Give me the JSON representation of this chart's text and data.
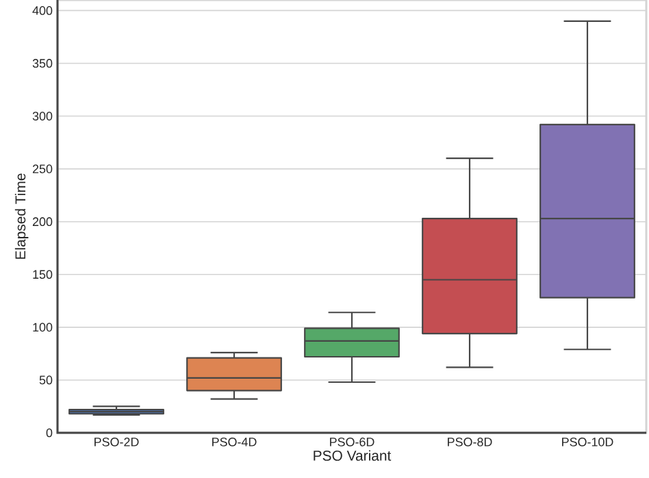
{
  "chart_data": {
    "type": "box",
    "xlabel": "PSO Variant",
    "ylabel": "Elapsed Time",
    "categories": [
      "PSO-2D",
      "PSO-4D",
      "PSO-6D",
      "PSO-8D",
      "PSO-10D"
    ],
    "colors": [
      "#4c72b0",
      "#dd8452",
      "#55a868",
      "#c44e52",
      "#8172b3"
    ],
    "boxes": [
      {
        "low": 17,
        "q1": 18,
        "median": 20,
        "q3": 22,
        "high": 25
      },
      {
        "low": 32,
        "q1": 40,
        "median": 52,
        "q3": 71,
        "high": 76
      },
      {
        "low": 48,
        "q1": 72,
        "median": 87,
        "q3": 99,
        "high": 114
      },
      {
        "low": 62,
        "q1": 94,
        "median": 145,
        "q3": 203,
        "high": 260
      },
      {
        "low": 79,
        "q1": 128,
        "median": 203,
        "q3": 292,
        "high": 390
      }
    ],
    "ylim": [
      0,
      410
    ],
    "yticks": [
      0,
      50,
      100,
      150,
      200,
      250,
      300,
      350,
      400
    ],
    "grid": "y"
  }
}
